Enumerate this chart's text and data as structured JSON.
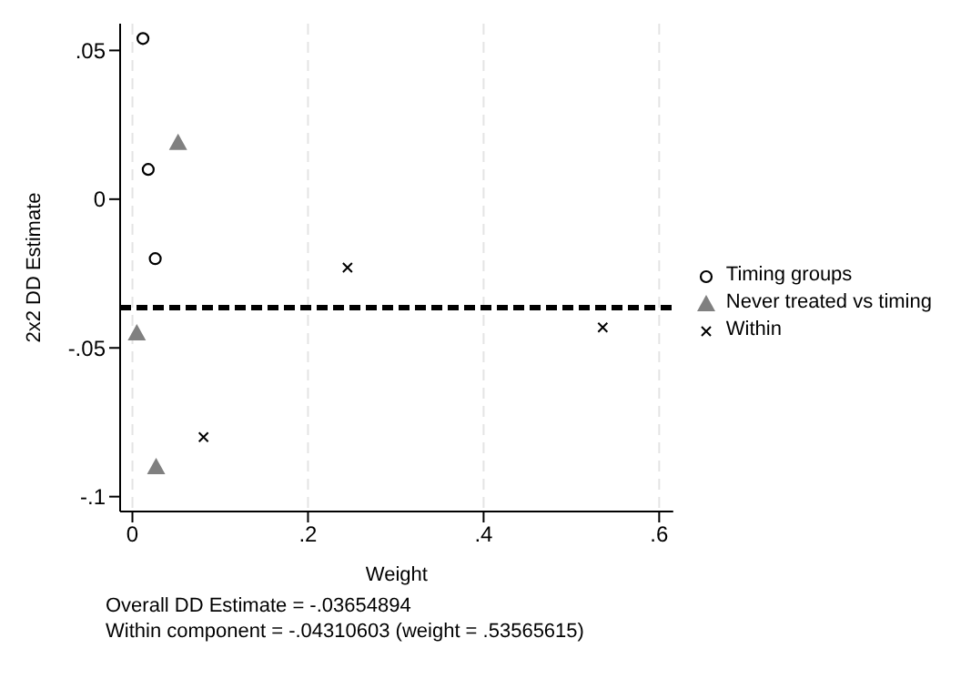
{
  "chart_data": {
    "type": "scatter",
    "xlabel": "Weight",
    "ylabel": "2x2 DD Estimate",
    "xlim": [
      -0.014,
      0.616
    ],
    "xticks": [
      {
        "value": 0,
        "label": "0"
      },
      {
        "value": 0.2,
        "label": ".2"
      },
      {
        "value": 0.4,
        "label": ".4"
      },
      {
        "value": 0.6,
        "label": ".6"
      }
    ],
    "ylim": [
      -0.105,
      0.059
    ],
    "yticks": [
      {
        "value": -0.1,
        "label": "-.1"
      },
      {
        "value": -0.05,
        "label": "-.05"
      },
      {
        "value": 0,
        "label": "0"
      },
      {
        "value": 0.05,
        "label": ".05"
      }
    ],
    "grid": "x",
    "legend": "right",
    "series": [
      {
        "name": "Timing groups",
        "color": "#000000",
        "marker": "circle",
        "x": [
          0.012,
          0.018,
          0.026
        ],
        "values": [
          0.054,
          0.01,
          -0.02
        ]
      },
      {
        "name": "Never treated vs timing",
        "color": "#808080",
        "marker": "triangle",
        "x": [
          0.052,
          0.005,
          0.027
        ],
        "values": [
          0.019,
          -0.045,
          -0.09
        ]
      },
      {
        "name": "Within",
        "color": "#000000",
        "marker": "cross",
        "x": [
          0.245,
          0.5357,
          0.081
        ],
        "values": [
          -0.023,
          -0.0431,
          -0.08
        ]
      }
    ],
    "ref_lines": [
      {
        "axis": "y",
        "value": -0.0365,
        "color": "#000000",
        "line_style": "dashed"
      }
    ],
    "annotations": [
      "Overall DD Estimate = -.03654894",
      "Within component = -.04310603 (weight = .53565615)"
    ]
  }
}
